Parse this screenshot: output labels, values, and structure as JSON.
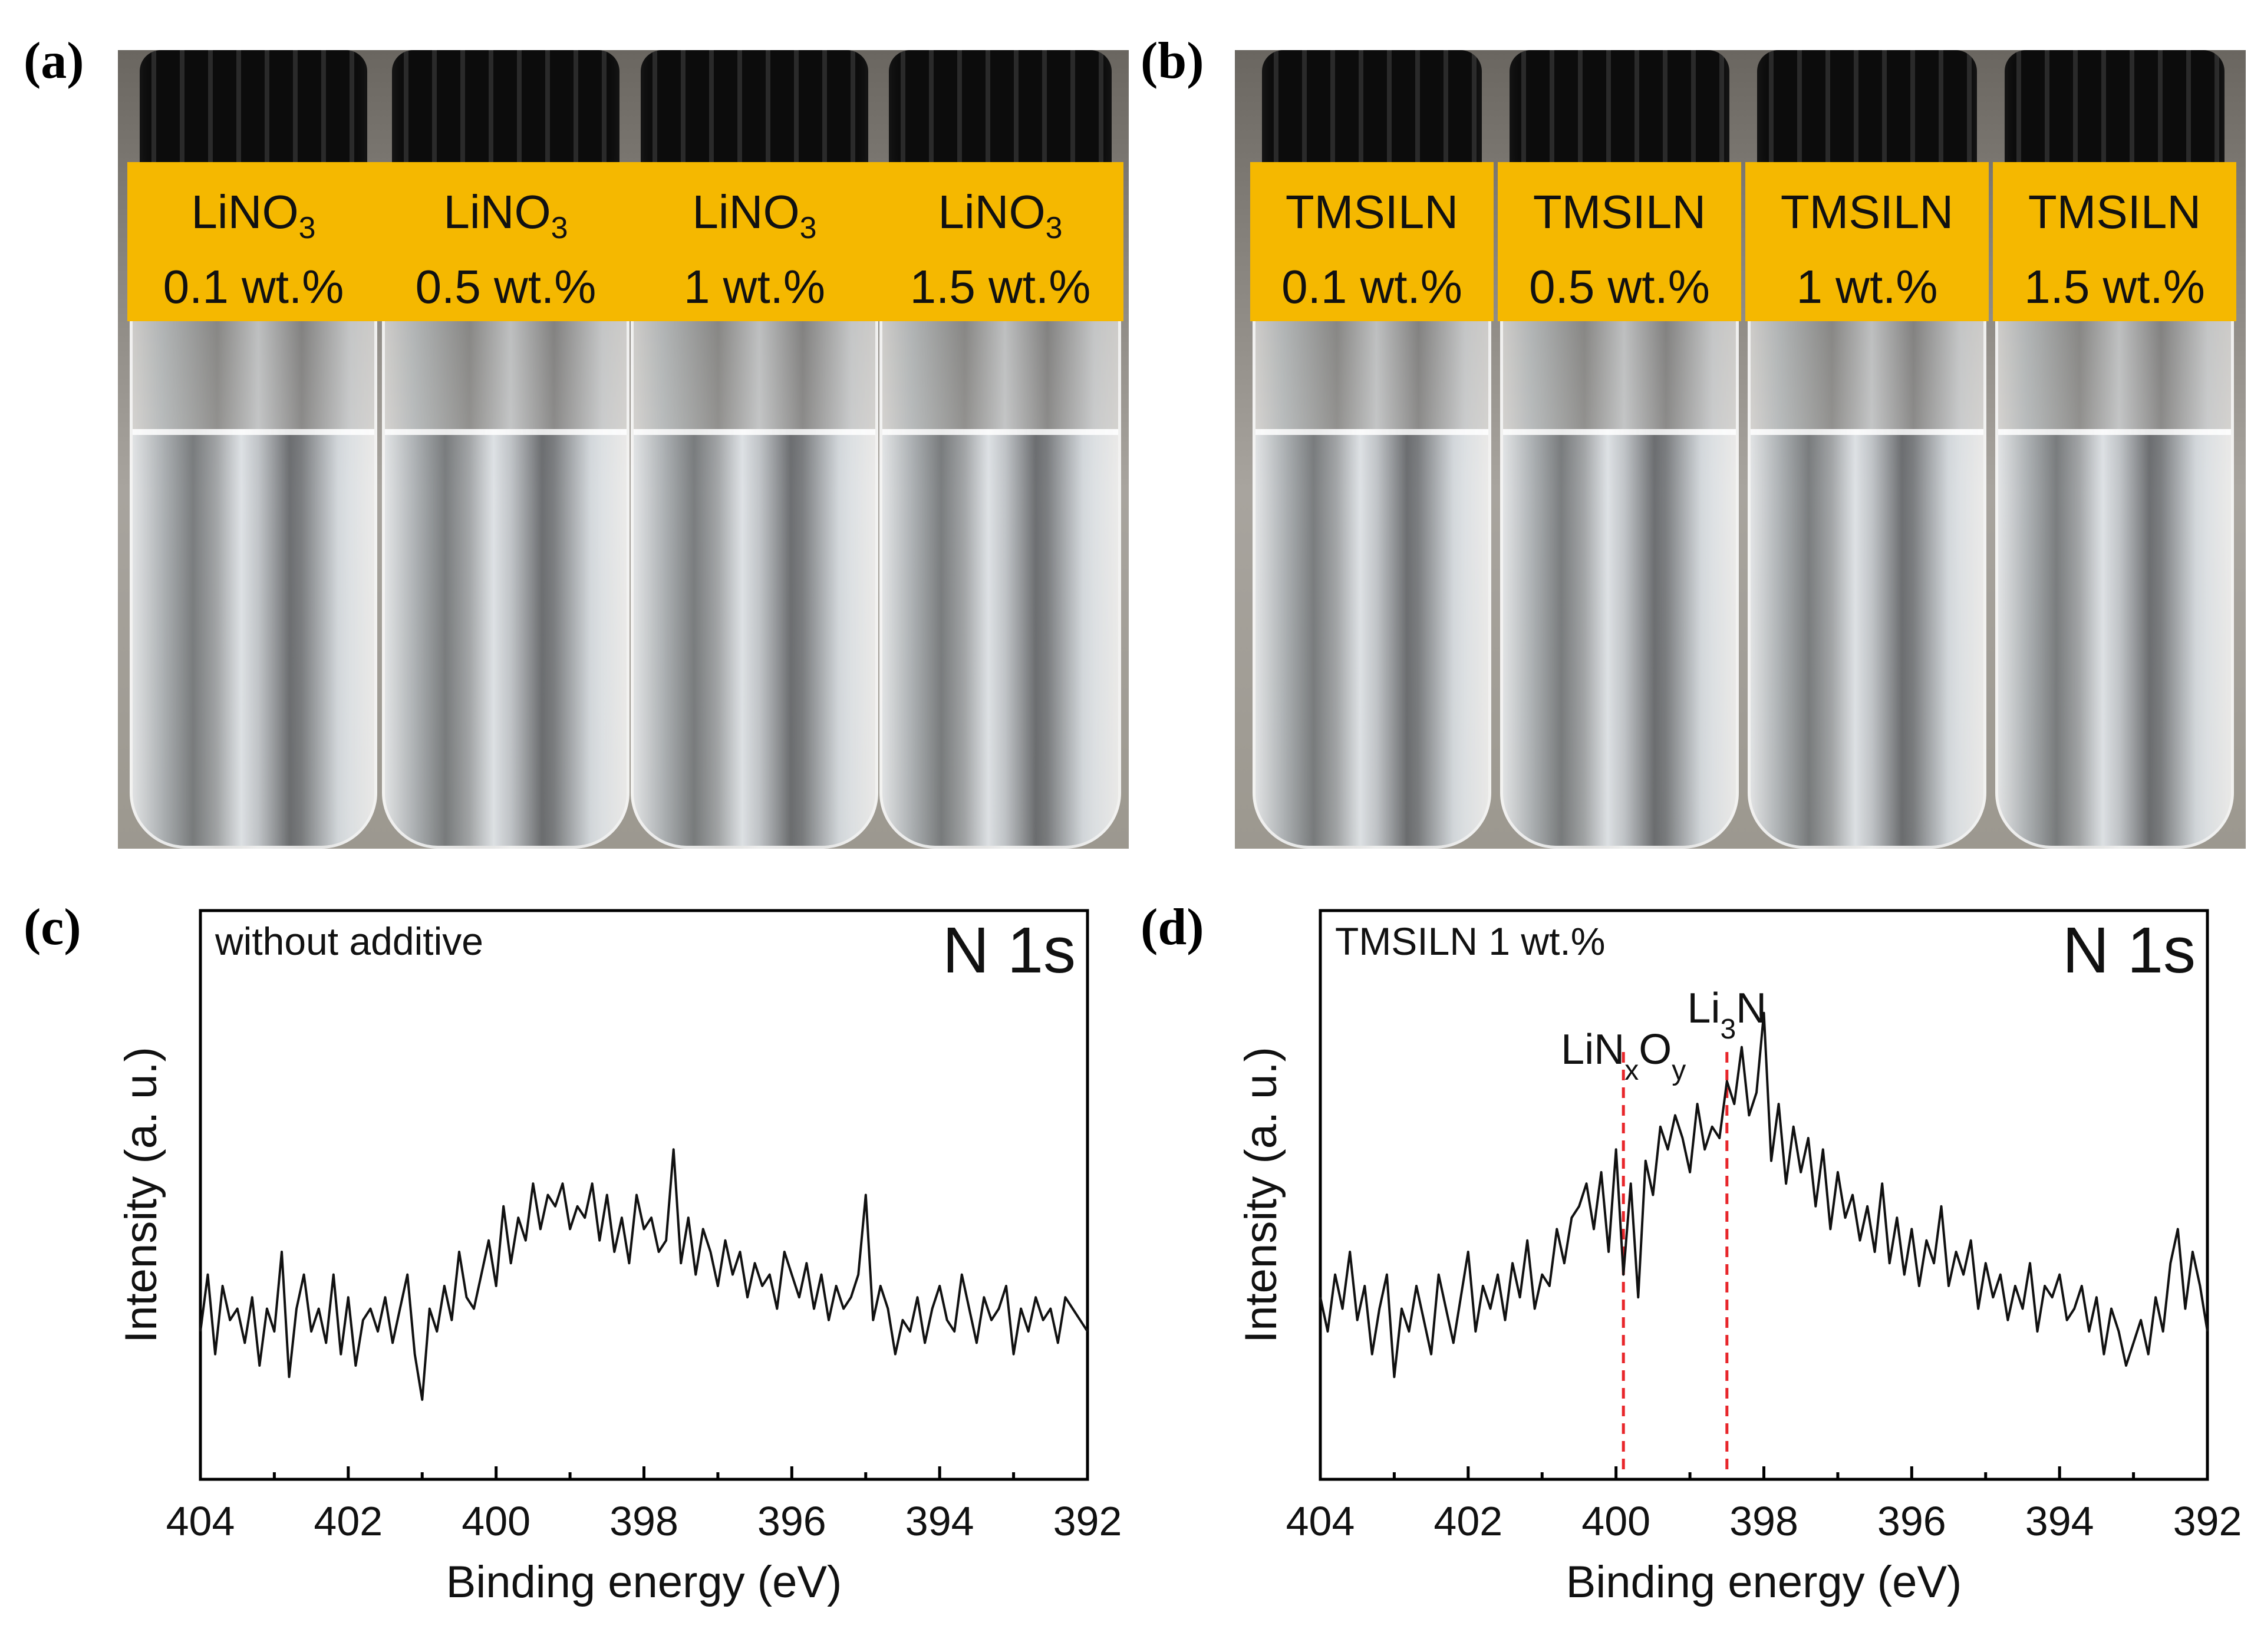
{
  "panels": {
    "a": {
      "letter": "(a)",
      "vials": [
        {
          "name": "LiNO",
          "sub": "3",
          "conc": "0.1 wt.%"
        },
        {
          "name": "LiNO",
          "sub": "3",
          "conc": "0.5 wt.%"
        },
        {
          "name": "LiNO",
          "sub": "3",
          "conc": "1 wt.%"
        },
        {
          "name": "LiNO",
          "sub": "3",
          "conc": "1.5 wt.%"
        }
      ]
    },
    "b": {
      "letter": "(b)",
      "vials": [
        {
          "name": "TMSILN",
          "sub": "",
          "conc": "0.1 wt.%"
        },
        {
          "name": "TMSILN",
          "sub": "",
          "conc": "0.5 wt.%"
        },
        {
          "name": "TMSILN",
          "sub": "",
          "conc": "1 wt.%"
        },
        {
          "name": "TMSILN",
          "sub": "",
          "conc": "1.5 wt.%"
        }
      ]
    },
    "c": {
      "letter": "(c)"
    },
    "d": {
      "letter": "(d)"
    }
  },
  "colors": {
    "label_bg": "#f5b800",
    "reference_line": "#e8262b",
    "trace": "#111111"
  },
  "chart_data": [
    {
      "type": "line",
      "panel": "c",
      "annotation": "without additive",
      "core_level": "N 1s",
      "xlabel": "Binding energy (eV)",
      "ylabel": "Intensity (a. u.)",
      "xlim": [
        404,
        392
      ],
      "ylim": [
        0,
        100
      ],
      "xticks": [
        "404",
        "402",
        "400",
        "398",
        "396",
        "394",
        "392"
      ],
      "y_ticks_shown": false,
      "reference_lines": [],
      "series": [
        {
          "x": [
            404.0,
            403.9,
            403.8,
            403.7,
            403.6,
            403.5,
            403.4,
            403.3,
            403.2,
            403.1,
            403.0,
            402.9,
            402.8,
            402.7,
            402.6,
            402.5,
            402.4,
            402.3,
            402.2,
            402.1,
            402.0,
            401.9,
            401.8,
            401.7,
            401.6,
            401.5,
            401.4,
            401.3,
            401.2,
            401.1,
            401.0,
            400.9,
            400.8,
            400.7,
            400.6,
            400.5,
            400.4,
            400.3,
            400.2,
            400.1,
            400.0,
            399.9,
            399.8,
            399.7,
            399.6,
            399.5,
            399.4,
            399.3,
            399.2,
            399.1,
            399.0,
            398.9,
            398.8,
            398.7,
            398.6,
            398.5,
            398.4,
            398.3,
            398.2,
            398.1,
            398.0,
            397.9,
            397.8,
            397.7,
            397.6,
            397.5,
            397.4,
            397.3,
            397.2,
            397.1,
            397.0,
            396.9,
            396.8,
            396.7,
            396.6,
            396.5,
            396.4,
            396.3,
            396.2,
            396.1,
            396.0,
            395.9,
            395.8,
            395.7,
            395.6,
            395.5,
            395.4,
            395.3,
            395.2,
            395.1,
            395.0,
            394.9,
            394.8,
            394.7,
            394.6,
            394.5,
            394.4,
            394.3,
            394.2,
            394.1,
            394.0,
            393.9,
            393.8,
            393.7,
            393.6,
            393.5,
            393.4,
            393.3,
            393.2,
            393.1,
            393.0,
            392.9,
            392.8,
            392.7,
            392.6,
            392.5,
            392.4,
            392.3,
            392.2,
            392.1,
            392.0
          ],
          "values": [
            26,
            36,
            22,
            34,
            28,
            30,
            24,
            32,
            20,
            30,
            26,
            40,
            18,
            30,
            36,
            26,
            30,
            24,
            36,
            22,
            32,
            20,
            28,
            30,
            26,
            32,
            24,
            30,
            36,
            22,
            14,
            30,
            26,
            34,
            28,
            40,
            32,
            30,
            36,
            42,
            34,
            48,
            38,
            46,
            42,
            52,
            44,
            50,
            48,
            52,
            44,
            48,
            46,
            52,
            42,
            50,
            40,
            46,
            38,
            50,
            44,
            46,
            40,
            42,
            58,
            38,
            46,
            36,
            44,
            40,
            34,
            42,
            36,
            40,
            32,
            38,
            34,
            36,
            30,
            40,
            36,
            32,
            38,
            30,
            36,
            28,
            34,
            30,
            32,
            36,
            50,
            28,
            34,
            30,
            22,
            28,
            26,
            32,
            24,
            30,
            34,
            28,
            26,
            36,
            30,
            24,
            32,
            28,
            30,
            34,
            22,
            30,
            26,
            32,
            28,
            30,
            24,
            32,
            30,
            28,
            26
          ]
        }
      ]
    },
    {
      "type": "line",
      "panel": "d",
      "annotation": "TMSILN 1 wt.%",
      "core_level": "N 1s",
      "xlabel": "Binding energy (eV)",
      "ylabel": "Intensity (a. u.)",
      "xlim": [
        404,
        392
      ],
      "ylim": [
        0,
        100
      ],
      "xticks": [
        "404",
        "402",
        "400",
        "398",
        "396",
        "394",
        "392"
      ],
      "y_ticks_shown": false,
      "reference_lines": [
        {
          "x": 399.9,
          "label": "LiN",
          "sub1": "x",
          "mid": "O",
          "sub2": "y"
        },
        {
          "x": 398.5,
          "label": "Li",
          "sub1": "3",
          "mid": "N",
          "sub2": ""
        }
      ],
      "series": [
        {
          "x": [
            404.0,
            403.9,
            403.8,
            403.7,
            403.6,
            403.5,
            403.4,
            403.3,
            403.2,
            403.1,
            403.0,
            402.9,
            402.8,
            402.7,
            402.6,
            402.5,
            402.4,
            402.3,
            402.2,
            402.1,
            402.0,
            401.9,
            401.8,
            401.7,
            401.6,
            401.5,
            401.4,
            401.3,
            401.2,
            401.1,
            401.0,
            400.9,
            400.8,
            400.7,
            400.6,
            400.5,
            400.4,
            400.3,
            400.2,
            400.1,
            400.0,
            399.9,
            399.8,
            399.7,
            399.6,
            399.5,
            399.4,
            399.3,
            399.2,
            399.1,
            399.0,
            398.9,
            398.8,
            398.7,
            398.6,
            398.5,
            398.4,
            398.3,
            398.2,
            398.1,
            398.0,
            397.9,
            397.8,
            397.7,
            397.6,
            397.5,
            397.4,
            397.3,
            397.2,
            397.1,
            397.0,
            396.9,
            396.8,
            396.7,
            396.6,
            396.5,
            396.4,
            396.3,
            396.2,
            396.1,
            396.0,
            395.9,
            395.8,
            395.7,
            395.6,
            395.5,
            395.4,
            395.3,
            395.2,
            395.1,
            395.0,
            394.9,
            394.8,
            394.7,
            394.6,
            394.5,
            394.4,
            394.3,
            394.2,
            394.1,
            394.0,
            393.9,
            393.8,
            393.7,
            393.6,
            393.5,
            393.4,
            393.3,
            393.2,
            393.1,
            393.0,
            392.9,
            392.8,
            392.7,
            392.6,
            392.5,
            392.4,
            392.3,
            392.2,
            392.1,
            392.0
          ],
          "values": [
            32,
            26,
            36,
            30,
            40,
            28,
            34,
            22,
            30,
            36,
            18,
            30,
            26,
            34,
            28,
            22,
            36,
            30,
            24,
            32,
            40,
            26,
            34,
            30,
            36,
            28,
            38,
            32,
            42,
            30,
            36,
            34,
            44,
            38,
            46,
            48,
            52,
            44,
            54,
            40,
            58,
            36,
            52,
            32,
            56,
            50,
            62,
            58,
            64,
            60,
            54,
            66,
            58,
            62,
            60,
            70,
            66,
            76,
            64,
            68,
            82,
            56,
            66,
            52,
            62,
            54,
            60,
            48,
            58,
            44,
            54,
            46,
            50,
            42,
            48,
            40,
            52,
            38,
            46,
            36,
            44,
            34,
            42,
            38,
            48,
            34,
            40,
            36,
            42,
            30,
            38,
            32,
            36,
            28,
            34,
            30,
            38,
            26,
            34,
            32,
            36,
            28,
            30,
            34,
            26,
            32,
            22,
            30,
            26,
            20,
            24,
            28,
            22,
            32,
            26,
            38,
            44,
            30,
            40,
            34,
            26
          ]
        }
      ]
    }
  ]
}
